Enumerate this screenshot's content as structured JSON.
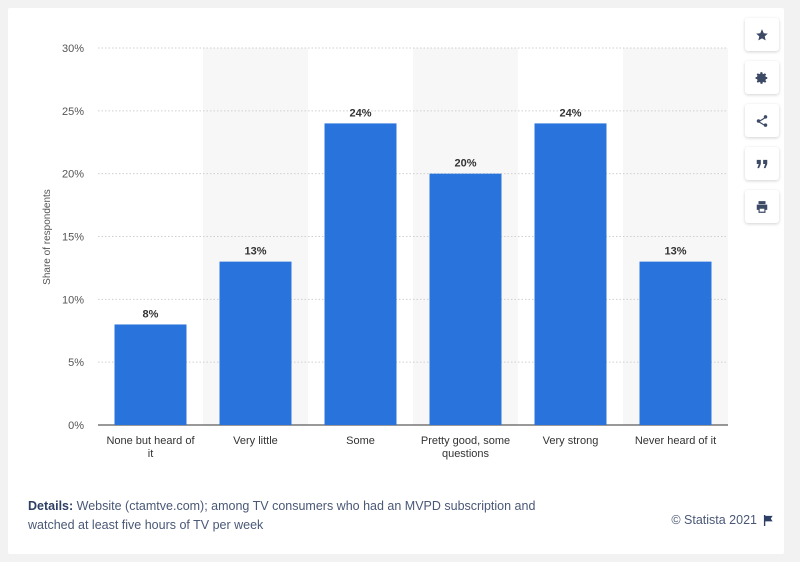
{
  "chart_data": {
    "type": "bar",
    "categories": [
      "None but heard of it",
      "Very little",
      "Some",
      "Pretty good, some questions",
      "Very strong",
      "Never heard of it"
    ],
    "values": [
      8,
      13,
      24,
      20,
      24,
      13
    ],
    "value_labels": [
      "8%",
      "13%",
      "24%",
      "20%",
      "24%",
      "13%"
    ],
    "ylabel": "Share of respondents",
    "ylim": [
      0,
      30
    ],
    "yticks": [
      0,
      5,
      10,
      15,
      20,
      25,
      30
    ],
    "ytick_labels": [
      "0%",
      "5%",
      "10%",
      "15%",
      "20%",
      "25%",
      "30%"
    ],
    "bar_color": "#2874dc",
    "grid": true
  },
  "toolbar": {
    "items": [
      "star-icon",
      "gear-icon",
      "share-icon",
      "quote-icon",
      "print-icon"
    ]
  },
  "footer": {
    "details_label": "Details:",
    "details_text": "Website (ctamtve.com); among TV consumers who had an MVPD subscription and watched at least five hours of TV per week",
    "copyright": "© Statista 2021"
  }
}
